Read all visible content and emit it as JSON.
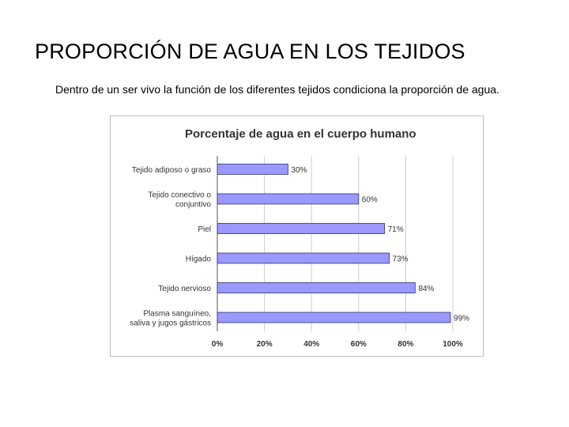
{
  "slide": {
    "title": "PROPORCIÓN DE AGUA EN LOS TEJIDOS",
    "body": "Dentro de un ser vivo la función de los diferentes tejidos condiciona la proporción de agua."
  },
  "colors": {
    "bar_fill": "#9999ff",
    "bar_stroke": "#333366",
    "gridline": "#cccccc",
    "axis": "#555555",
    "text": "#333333"
  },
  "chart_data": {
    "type": "bar",
    "orientation": "horizontal",
    "title": "Porcentaje de agua en el cuerpo humano",
    "categories": [
      [
        "Tejido adiposo o graso"
      ],
      [
        "Tejido conectivo o",
        "conjuntivo"
      ],
      [
        "Piel"
      ],
      [
        "Hígado"
      ],
      [
        "Tejido nervioso"
      ],
      [
        "Plasma sanguíneo,",
        "saliva y jugos gástricos"
      ]
    ],
    "values": [
      30,
      60,
      71,
      73,
      84,
      99
    ],
    "data_labels": [
      "30%",
      "60%",
      "71%",
      "73%",
      "84%",
      "99%"
    ],
    "xlim": [
      0,
      100
    ],
    "xticks": [
      0,
      20,
      40,
      60,
      80,
      100
    ],
    "xtick_labels": [
      "0%",
      "20%",
      "40%",
      "60%",
      "80%",
      "100%"
    ],
    "xlabel": "",
    "ylabel": "",
    "grid": "vertical",
    "legend": "none"
  }
}
